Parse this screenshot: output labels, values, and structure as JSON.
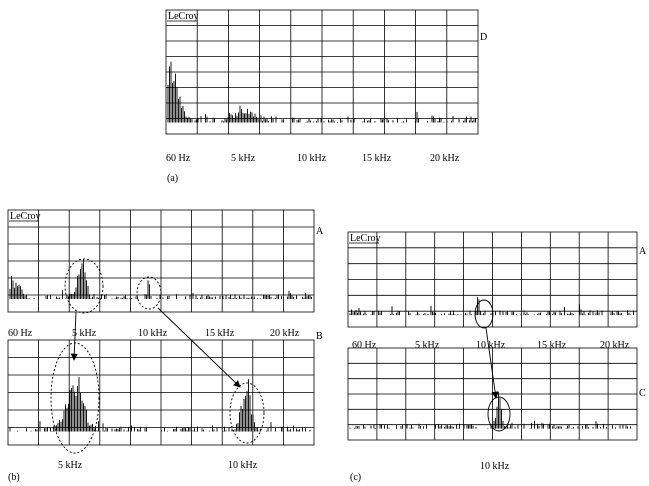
{
  "panels": [
    {
      "caption": "(a)",
      "brand": "LeCroy",
      "channels": [
        "D"
      ],
      "top_labels": [
        "60 Hz",
        "5 kHz",
        "10 kHz",
        "15 kHz",
        "20 kHz"
      ]
    },
    {
      "caption": "(b)",
      "brand": "LeCroy",
      "channels": [
        "A",
        "B"
      ],
      "top_labels": [
        "60 Hz",
        "5 kHz",
        "10 kHz",
        "15 kHz",
        "20 kHz"
      ],
      "bottom_labels": [
        "5 kHz",
        "10 kHz"
      ]
    },
    {
      "caption": "(c)",
      "brand": "LeCroy",
      "channels": [
        "A",
        "C"
      ],
      "top_labels": [
        "60 Hz",
        "5 kHz",
        "10 kHz",
        "15 kHz",
        "20 kHz"
      ],
      "bottom_labels": [
        "10 kHz"
      ]
    }
  ]
}
